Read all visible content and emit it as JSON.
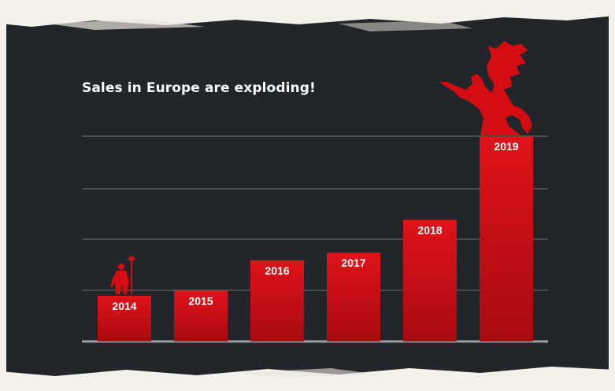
{
  "title": "Sales in Europe are exploding!",
  "colors": {
    "background": "#22262a",
    "bar": "#d40d12",
    "bar_dark": "#9e0a0e",
    "gridline": "#6b6f73",
    "baseline": "#9a9ea2",
    "text": "#ffffff",
    "border": "#f4f1ea"
  },
  "icons": {
    "small": "small-figure-with-staff-icon",
    "large": "dragon-silhouette-icon"
  },
  "chart_data": {
    "type": "bar",
    "title": "Sales in Europe are exploding!",
    "categories": [
      "2014",
      "2015",
      "2016",
      "2017",
      "2018",
      "2019"
    ],
    "values": [
      0.9,
      1.0,
      1.6,
      1.75,
      2.4,
      4.05
    ],
    "ylim": [
      0,
      4.05
    ],
    "grid": true,
    "axis_labels_visible": false,
    "data_labels": [
      "2014",
      "2015",
      "2016",
      "2017",
      "2018",
      "2019"
    ]
  }
}
